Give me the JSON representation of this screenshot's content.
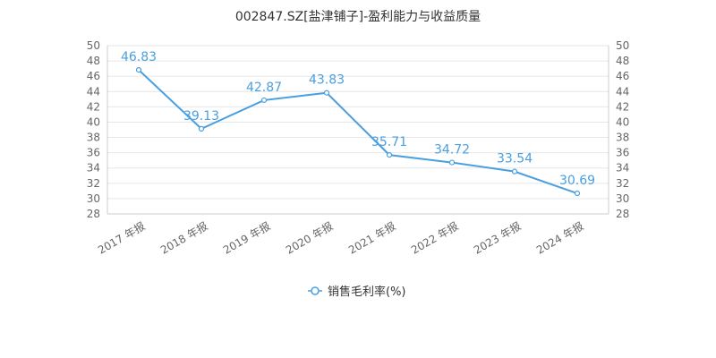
{
  "colors": {
    "series": "#4a9fe0",
    "grid": "#e6e6e6",
    "axis": "#cccccc"
  },
  "chart_data": {
    "type": "line",
    "title": "002847.SZ[盐津铺子]-盈利能力与收益质量",
    "categories": [
      "2017 年报",
      "2018 年报",
      "2019 年报",
      "2020 年报",
      "2021 年报",
      "2022 年报",
      "2023 年报",
      "2024 年报"
    ],
    "series": [
      {
        "name": "销售毛利率(%)",
        "values": [
          46.83,
          39.13,
          42.87,
          43.83,
          35.71,
          34.72,
          33.54,
          30.69
        ]
      }
    ],
    "ylim": [
      28,
      50
    ],
    "yticks": [
      28,
      30,
      32,
      34,
      36,
      38,
      40,
      42,
      44,
      46,
      48,
      50
    ],
    "y2ticks": [
      28,
      30,
      32,
      34,
      36,
      38,
      40,
      42,
      44,
      46,
      48,
      50
    ],
    "grid": true,
    "legend_position": "bottom-center",
    "data_labels": [
      "46.83",
      "39.13",
      "42.87",
      "43.83",
      "35.71",
      "34.72",
      "33.54",
      "30.69"
    ]
  }
}
